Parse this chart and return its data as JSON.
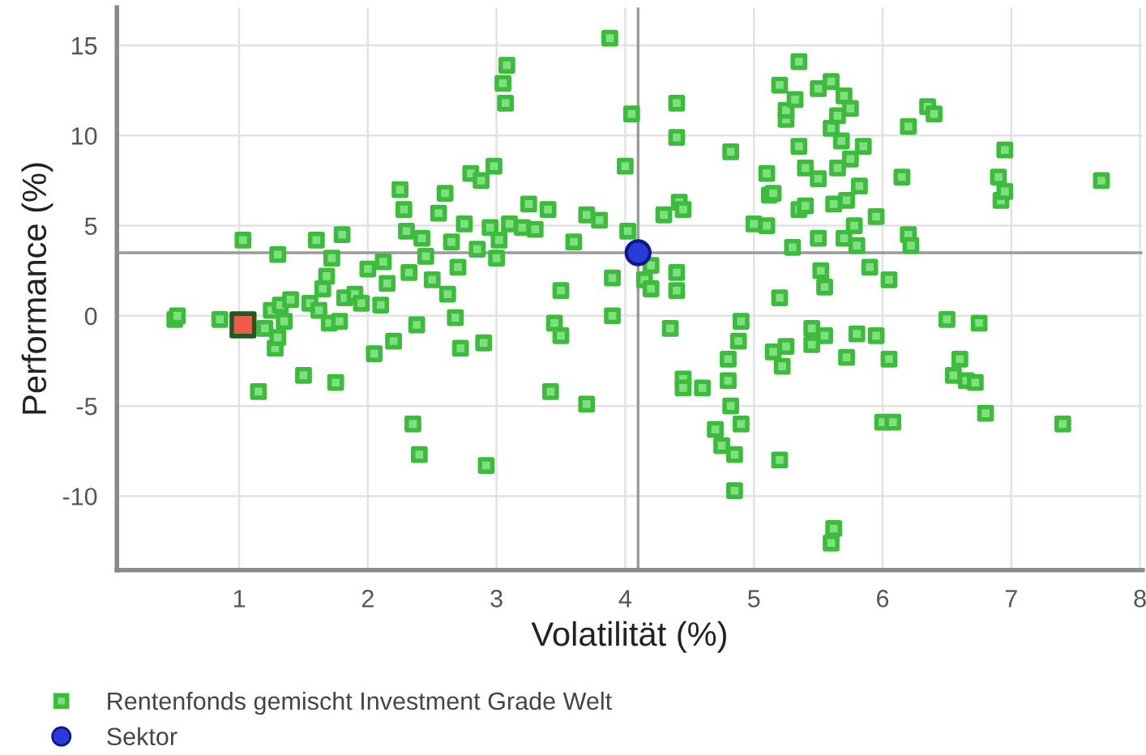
{
  "chart_data": {
    "type": "scatter",
    "xlabel": "Volatilität (%)",
    "ylabel": "Performance (%)",
    "xlim": [
      0.05,
      8.02
    ],
    "ylim": [
      -14.1,
      17.1
    ],
    "xticks": [
      1,
      2,
      3,
      4,
      5,
      6,
      7,
      8
    ],
    "yticks": [
      -10,
      -5,
      0,
      5,
      10,
      15
    ],
    "grid": true,
    "legend": "bottom",
    "ref_lines": [
      {
        "axis": "x",
        "value": 4.1,
        "color": "#9a9a9a"
      },
      {
        "axis": "y",
        "value": 3.5,
        "color": "#9a9a9a"
      }
    ],
    "series": [
      {
        "name": "Rentenfonds gemischt Investment Grade Welt",
        "color": "#3dbb3d",
        "marker": "square",
        "x": [
          0.5,
          0.52,
          0.85,
          1.03,
          1.15,
          1.2,
          1.25,
          1.28,
          1.3,
          1.3,
          1.32,
          1.35,
          1.4,
          1.5,
          1.55,
          1.6,
          1.62,
          1.65,
          1.68,
          1.7,
          1.72,
          1.75,
          1.78,
          1.8,
          1.82,
          1.9,
          1.95,
          2.0,
          2.05,
          2.1,
          2.12,
          2.15,
          2.2,
          2.25,
          2.28,
          2.3,
          2.32,
          2.35,
          2.38,
          2.4,
          2.42,
          2.45,
          2.5,
          2.55,
          2.6,
          2.62,
          2.65,
          2.68,
          2.7,
          2.72,
          2.75,
          2.8,
          2.85,
          2.88,
          2.9,
          2.92,
          2.95,
          2.98,
          3.0,
          3.02,
          3.05,
          3.07,
          3.08,
          3.1,
          3.2,
          3.25,
          3.3,
          3.4,
          3.42,
          3.45,
          3.5,
          3.5,
          3.6,
          3.7,
          3.7,
          3.8,
          3.88,
          3.9,
          3.9,
          4.0,
          4.02,
          4.05,
          4.15,
          4.2,
          4.2,
          4.3,
          4.35,
          4.4,
          4.4,
          4.42,
          4.45,
          4.4,
          4.4,
          4.45,
          4.45,
          4.6,
          4.7,
          4.75,
          4.8,
          4.8,
          4.82,
          4.82,
          4.85,
          4.85,
          4.88,
          4.9,
          4.9,
          5.0,
          5.1,
          5.1,
          5.12,
          5.15,
          5.15,
          5.2,
          5.2,
          5.2,
          5.22,
          5.25,
          5.25,
          5.25,
          5.3,
          5.32,
          5.35,
          5.35,
          5.35,
          5.4,
          5.4,
          5.45,
          5.45,
          5.5,
          5.5,
          5.5,
          5.52,
          5.55,
          5.55,
          5.6,
          5.6,
          5.6,
          5.62,
          5.62,
          5.65,
          5.65,
          5.68,
          5.7,
          5.7,
          5.72,
          5.72,
          5.75,
          5.75,
          5.78,
          5.8,
          5.8,
          5.82,
          5.85,
          5.9,
          5.95,
          5.95,
          6.0,
          6.05,
          6.05,
          6.08,
          6.15,
          6.2,
          6.2,
          6.22,
          6.35,
          6.4,
          6.5,
          6.55,
          6.6,
          6.65,
          6.72,
          6.75,
          6.8,
          6.9,
          6.92,
          6.95,
          6.95,
          7.4,
          7.7
        ],
        "values": [
          -0.2,
          0.0,
          -0.2,
          4.2,
          -4.2,
          -0.7,
          0.3,
          -1.8,
          3.4,
          -1.2,
          0.6,
          -0.3,
          0.9,
          -3.3,
          0.7,
          4.2,
          0.3,
          1.5,
          2.2,
          -0.4,
          3.2,
          -3.7,
          -0.3,
          4.5,
          1.0,
          1.2,
          0.7,
          2.6,
          -2.1,
          0.6,
          3.0,
          1.8,
          -1.4,
          7.0,
          5.9,
          4.7,
          2.4,
          -6.0,
          -0.5,
          -7.7,
          4.3,
          3.3,
          2.0,
          5.7,
          6.8,
          1.2,
          4.1,
          -0.1,
          2.7,
          -1.8,
          5.1,
          7.9,
          3.7,
          7.5,
          -1.5,
          -8.3,
          4.9,
          8.3,
          3.2,
          4.2,
          12.9,
          11.8,
          13.9,
          5.1,
          4.9,
          6.2,
          4.8,
          5.9,
          -4.2,
          -0.4,
          1.4,
          -1.1,
          4.1,
          -4.9,
          5.6,
          5.3,
          15.4,
          2.1,
          0.0,
          8.3,
          4.7,
          11.2,
          2.0,
          1.5,
          2.8,
          5.6,
          -0.7,
          11.8,
          9.9,
          6.3,
          5.9,
          1.4,
          2.4,
          -3.5,
          -4.0,
          -4.0,
          -6.3,
          -7.2,
          -2.4,
          -3.6,
          -5.0,
          9.1,
          -7.7,
          -9.7,
          -1.4,
          -0.3,
          -6.0,
          5.1,
          5.0,
          7.9,
          6.7,
          6.8,
          -2.0,
          -8.0,
          12.8,
          1.0,
          -2.8,
          -1.7,
          10.9,
          11.4,
          3.8,
          12.0,
          14.1,
          9.4,
          5.9,
          8.2,
          6.1,
          -1.6,
          -0.7,
          4.3,
          12.6,
          7.6,
          2.5,
          1.6,
          -1.1,
          10.4,
          13.0,
          -12.6,
          -11.8,
          6.2,
          8.2,
          11.1,
          9.7,
          4.3,
          12.2,
          6.4,
          -2.3,
          11.5,
          8.7,
          5.0,
          3.9,
          -1.0,
          7.2,
          9.4,
          2.7,
          -1.1,
          5.5,
          -5.9,
          2.0,
          -2.4,
          -5.9,
          7.7,
          10.5,
          4.5,
          3.9,
          11.6,
          11.2,
          -0.2,
          -3.3,
          -2.4,
          -3.6,
          -3.7,
          -0.4,
          -5.4,
          7.7,
          6.4,
          9.2,
          6.9,
          -6.0,
          7.5
        ]
      },
      {
        "color": "#f05a4a",
        "marker": "square",
        "x": [
          1.03
        ],
        "values": [
          -0.5
        ]
      },
      {
        "name": "Sektor",
        "color": "#2a3bd8",
        "marker": "circle",
        "x": [
          4.1
        ],
        "values": [
          3.5
        ]
      }
    ]
  }
}
